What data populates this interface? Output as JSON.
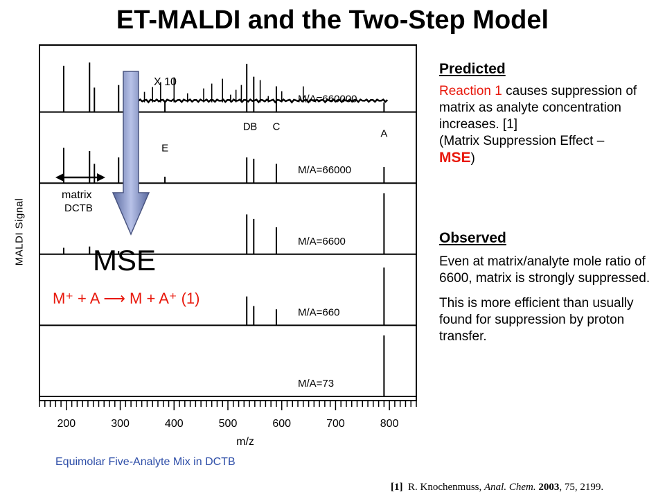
{
  "title": "ET-MALDI and the Two-Step Model",
  "chart_data": {
    "type": "line",
    "xlabel": "m/z",
    "ylabel": "MALDI Signal",
    "xlim": [
      150,
      850
    ],
    "xticks": [
      200,
      300,
      400,
      500,
      600,
      700,
      800
    ],
    "grid": false,
    "panels": [
      {
        "label": "M/A=660000",
        "scale_note": "X 10",
        "peaks": [
          [
            195,
            0.72
          ],
          [
            243,
            0.77
          ],
          [
            252,
            0.38
          ],
          [
            297,
            0.42
          ],
          [
            383,
            0.18
          ],
          [
            535,
            0.75
          ],
          [
            548,
            0.55
          ],
          [
            590,
            0.4
          ],
          [
            790,
            0.15
          ]
        ]
      },
      {
        "label": "M/A=66000",
        "peaks": [
          [
            195,
            0.55
          ],
          [
            243,
            0.5
          ],
          [
            252,
            0.3
          ],
          [
            297,
            0.4
          ],
          [
            383,
            0.1
          ],
          [
            535,
            0.4
          ],
          [
            548,
            0.38
          ],
          [
            590,
            0.3
          ],
          [
            790,
            0.25
          ]
        ]
      },
      {
        "label": "M/A=6600",
        "peaks": [
          [
            195,
            0.1
          ],
          [
            243,
            0.12
          ],
          [
            297,
            0.05
          ],
          [
            535,
            0.62
          ],
          [
            548,
            0.55
          ],
          [
            590,
            0.42
          ],
          [
            790,
            0.95
          ]
        ]
      },
      {
        "label": "M/A=660",
        "peaks": [
          [
            535,
            0.45
          ],
          [
            548,
            0.3
          ],
          [
            590,
            0.25
          ],
          [
            790,
            0.9
          ]
        ]
      },
      {
        "label": "M/A=73",
        "peaks": [
          [
            790,
            0.95
          ]
        ]
      }
    ],
    "peak_labels": [
      {
        "text": "D",
        "x": 535
      },
      {
        "text": "B",
        "x": 548
      },
      {
        "text": "C",
        "x": 590
      },
      {
        "text": "A",
        "x": 790
      },
      {
        "text": "E",
        "x": 383
      }
    ],
    "annotations": {
      "matrix": "matrix",
      "dctb": "DCTB",
      "x10": "X 10"
    }
  },
  "overlay": {
    "mse": "MSE",
    "reaction": "M⁺ + A  ⟶ M + A⁺ (1)",
    "arrow_color": "#8a97c4"
  },
  "predicted": {
    "heading": "Predicted",
    "reaction_label": "Reaction 1",
    "text1": " causes suppression of matrix as analyte concentration increases. [1]",
    "text2": "(Matrix Suppression Effect –",
    "mse": "MSE",
    "close": ")"
  },
  "observed": {
    "heading": "Observed",
    "para1": "Even at matrix/analyte mole ratio of 6600, matrix is strongly suppressed.",
    "para2": "This is more efficient than usually found for suppression by proton transfer."
  },
  "caption": "Equimolar Five-Analyte Mix in DCTB",
  "reference": {
    "num": "[1]",
    "authors": "R. Knochenmuss,",
    "journal": "Anal. Chem.",
    "year": "2003",
    "rest": ", 75, 2199."
  }
}
